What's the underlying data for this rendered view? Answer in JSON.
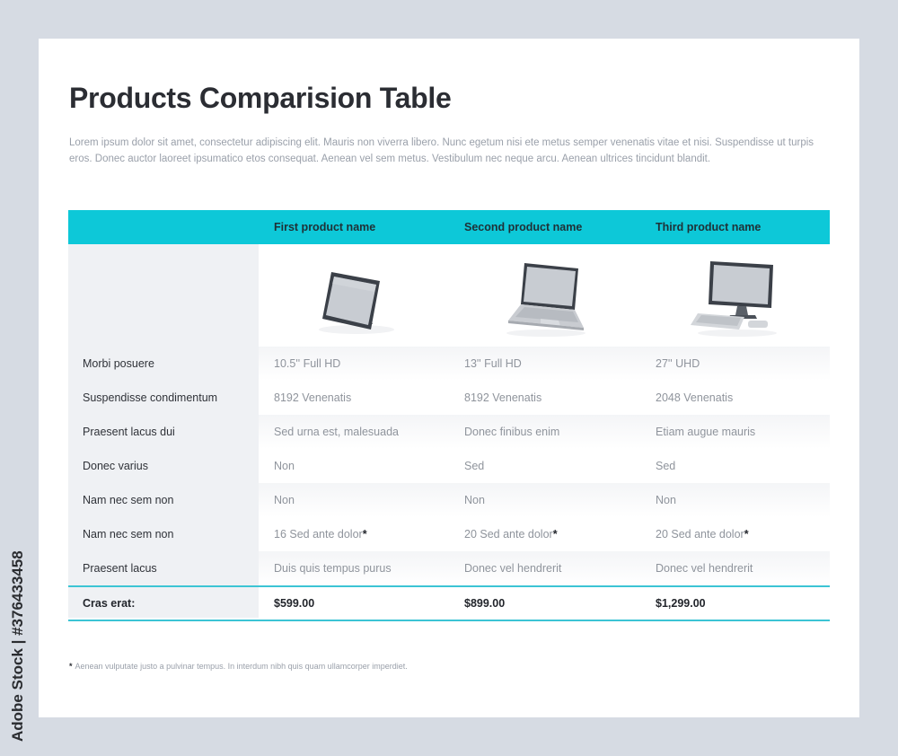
{
  "title": "Products Comparision Table",
  "intro": "Lorem ipsum dolor sit amet, consectetur adipiscing elit. Mauris non viverra libero. Nunc egetum nisi ete metus semper venenatis vitae et nisi. Suspendisse ut turpis eros. Donec auctor laoreet ipsumatico etos consequat. Aenean vel sem metus. Vestibulum nec neque arcu. Aenean ultrices tincidunt blandit.",
  "products": [
    {
      "name": "First product name",
      "icon": "tablet-icon",
      "price": "$599.00"
    },
    {
      "name": "Second product name",
      "icon": "laptop-icon",
      "price": "$899.00"
    },
    {
      "name": "Third product name",
      "icon": "desktop-computer-icon",
      "price": "$1,299.00"
    }
  ],
  "rows": [
    {
      "label": "Morbi posuere",
      "values": [
        "10.5'' Full HD",
        "13'' Full HD",
        "27'' UHD"
      ]
    },
    {
      "label": "Suspendisse condimentum",
      "values": [
        "8192 Venenatis",
        "8192 Venenatis",
        "2048 Venenatis"
      ]
    },
    {
      "label": "Praesent lacus dui",
      "values": [
        "Sed urna est, malesuada",
        "Donec finibus enim",
        "Etiam augue mauris"
      ]
    },
    {
      "label": "Donec varius",
      "values": [
        "Non",
        "Sed",
        "Sed"
      ]
    },
    {
      "label": "Nam nec sem non",
      "values": [
        "Non",
        "Non",
        "Non"
      ]
    },
    {
      "label": "Nam nec sem non",
      "values": [
        "16 Sed ante dolor",
        "20 Sed ante dolor",
        "20 Sed ante dolor"
      ],
      "star": "*"
    },
    {
      "label": "Praesent lacus",
      "values": [
        "Duis quis tempus purus",
        "Donec vel hendrerit",
        "Donec vel hendrerit"
      ]
    }
  ],
  "total_label": "Cras erat:",
  "footnote_star": "*",
  "footnote": "Aenean vulputate justo a pulvinar tempus. In interdum nibh quis quam ullamcorper imperdiet.",
  "side_watermark": "Adobe Stock | #376433458",
  "colors": {
    "accent": "#0dc8d8",
    "rule": "#3cc4d4",
    "title": "#2b2d33",
    "muted": "#9aa0aa",
    "background": "#d6dbe3"
  }
}
